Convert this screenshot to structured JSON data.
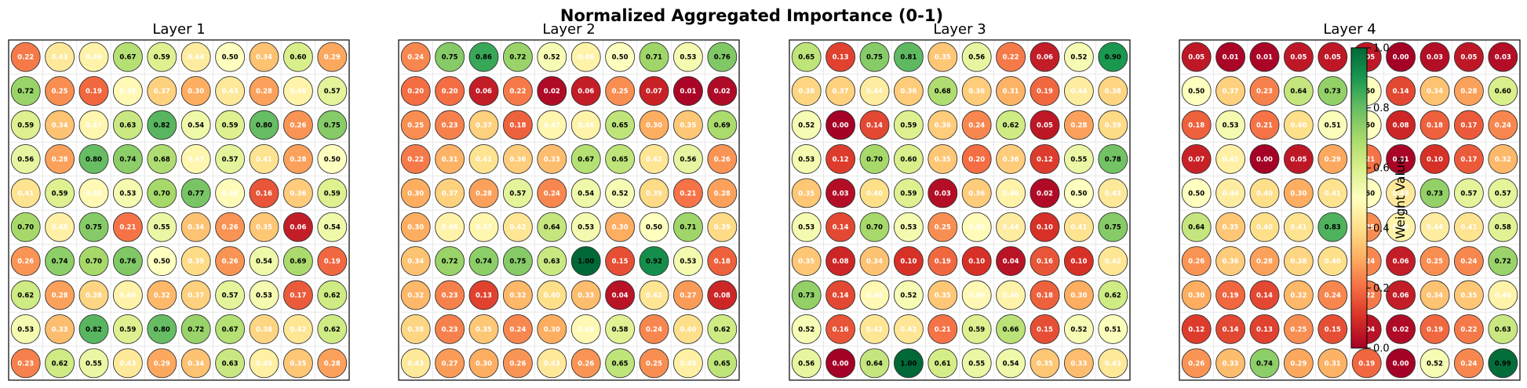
{
  "chart_data": {
    "type": "heatmap",
    "title": "Normalized Aggregated Importance (0-1)",
    "value_range": [
      0,
      1
    ],
    "colormap": "RdYlGn",
    "panels": [
      {
        "title": "Layer 1",
        "values": [
          [
            0.22,
            0.43,
            0.46,
            0.67,
            0.59,
            0.44,
            0.5,
            0.34,
            0.6,
            0.29
          ],
          [
            0.72,
            0.25,
            0.19,
            0.48,
            0.37,
            0.3,
            0.43,
            0.28,
            0.46,
            0.57
          ],
          [
            0.59,
            0.34,
            0.47,
            0.63,
            0.82,
            0.54,
            0.59,
            0.8,
            0.26,
            0.75
          ],
          [
            0.56,
            0.28,
            0.8,
            0.74,
            0.68,
            0.47,
            0.57,
            0.41,
            0.28,
            0.5
          ],
          [
            0.41,
            0.59,
            0.48,
            0.53,
            0.7,
            0.77,
            0.49,
            0.16,
            0.36,
            0.59
          ],
          [
            0.7,
            0.45,
            0.75,
            0.21,
            0.55,
            0.34,
            0.26,
            0.35,
            0.06,
            0.54
          ],
          [
            0.26,
            0.74,
            0.7,
            0.76,
            0.5,
            0.39,
            0.26,
            0.54,
            0.69,
            0.19
          ],
          [
            0.62,
            0.28,
            0.38,
            0.46,
            0.32,
            0.37,
            0.57,
            0.53,
            0.17,
            0.62
          ],
          [
            0.53,
            0.33,
            0.82,
            0.59,
            0.8,
            0.72,
            0.67,
            0.38,
            0.42,
            0.62
          ],
          [
            0.23,
            0.62,
            0.55,
            0.43,
            0.29,
            0.34,
            0.63,
            0.45,
            0.35,
            0.28
          ]
        ]
      },
      {
        "title": "Layer 2",
        "values": [
          [
            0.24,
            0.75,
            0.86,
            0.72,
            0.52,
            0.46,
            0.5,
            0.71,
            0.53,
            0.76
          ],
          [
            0.2,
            0.2,
            0.06,
            0.22,
            0.02,
            0.06,
            0.25,
            0.07,
            0.01,
            0.02
          ],
          [
            0.25,
            0.23,
            0.37,
            0.18,
            0.47,
            0.46,
            0.65,
            0.3,
            0.35,
            0.69
          ],
          [
            0.22,
            0.31,
            0.41,
            0.36,
            0.33,
            0.67,
            0.65,
            0.42,
            0.56,
            0.26
          ],
          [
            0.3,
            0.37,
            0.28,
            0.57,
            0.24,
            0.54,
            0.52,
            0.39,
            0.21,
            0.28
          ],
          [
            0.3,
            0.46,
            0.47,
            0.42,
            0.64,
            0.53,
            0.3,
            0.5,
            0.71,
            0.39
          ],
          [
            0.34,
            0.72,
            0.74,
            0.75,
            0.63,
            1.0,
            0.15,
            0.92,
            0.53,
            0.18
          ],
          [
            0.32,
            0.23,
            0.13,
            0.32,
            0.4,
            0.33,
            0.04,
            0.42,
            0.27,
            0.08
          ],
          [
            0.38,
            0.23,
            0.35,
            0.24,
            0.3,
            0.48,
            0.58,
            0.24,
            0.4,
            0.62
          ],
          [
            0.43,
            0.27,
            0.3,
            0.26,
            0.43,
            0.26,
            0.65,
            0.25,
            0.45,
            0.65
          ]
        ]
      },
      {
        "title": "Layer 3",
        "values": [
          [
            0.65,
            0.13,
            0.75,
            0.81,
            0.35,
            0.56,
            0.22,
            0.06,
            0.52,
            0.9
          ],
          [
            0.38,
            0.37,
            0.44,
            0.36,
            0.68,
            0.36,
            0.31,
            0.19,
            0.44,
            0.38
          ],
          [
            0.52,
            0.0,
            0.14,
            0.59,
            0.36,
            0.24,
            0.62,
            0.05,
            0.28,
            0.39
          ],
          [
            0.53,
            0.12,
            0.7,
            0.6,
            0.35,
            0.2,
            0.36,
            0.12,
            0.55,
            0.78
          ],
          [
            0.35,
            0.03,
            0.4,
            0.59,
            0.03,
            0.36,
            0.46,
            0.02,
            0.5,
            0.43
          ],
          [
            0.53,
            0.14,
            0.7,
            0.53,
            0.25,
            0.49,
            0.44,
            0.1,
            0.41,
            0.75
          ],
          [
            0.35,
            0.08,
            0.34,
            0.1,
            0.19,
            0.1,
            0.04,
            0.16,
            0.1,
            0.42
          ],
          [
            0.73,
            0.14,
            0.48,
            0.52,
            0.35,
            0.48,
            0.46,
            0.18,
            0.3,
            0.62
          ],
          [
            0.52,
            0.16,
            0.42,
            0.42,
            0.21,
            0.59,
            0.66,
            0.15,
            0.52,
            0.51
          ],
          [
            0.56,
            0.0,
            0.64,
            1.0,
            0.61,
            0.55,
            0.54,
            0.35,
            0.33,
            0.43
          ]
        ]
      },
      {
        "title": "Layer 4",
        "values": [
          [
            0.05,
            0.01,
            0.01,
            0.05,
            0.05,
            0.05,
            0.0,
            0.03,
            0.05,
            0.03
          ],
          [
            0.5,
            0.37,
            0.23,
            0.64,
            0.73,
            0.5,
            0.14,
            0.34,
            0.28,
            0.6
          ],
          [
            0.18,
            0.53,
            0.21,
            0.4,
            0.51,
            0.5,
            0.08,
            0.18,
            0.17,
            0.24
          ],
          [
            0.07,
            0.45,
            0.0,
            0.05,
            0.29,
            0.21,
            0.01,
            0.1,
            0.17,
            0.32
          ],
          [
            0.5,
            0.44,
            0.4,
            0.3,
            0.41,
            0.5,
            0.43,
            0.73,
            0.57,
            0.57
          ],
          [
            0.64,
            0.35,
            0.4,
            0.41,
            0.83,
            0.25,
            0.46,
            0.44,
            0.41,
            0.58
          ],
          [
            0.26,
            0.36,
            0.28,
            0.38,
            0.4,
            0.24,
            0.06,
            0.25,
            0.24,
            0.72
          ],
          [
            0.3,
            0.19,
            0.14,
            0.32,
            0.24,
            0.22,
            0.06,
            0.34,
            0.35,
            0.46
          ],
          [
            0.12,
            0.14,
            0.13,
            0.25,
            0.15,
            0.04,
            0.02,
            0.19,
            0.22,
            0.63
          ],
          [
            0.26,
            0.33,
            0.74,
            0.29,
            0.31,
            0.19,
            0.0,
            0.52,
            0.24,
            0.99
          ]
        ]
      }
    ],
    "colorbar": {
      "label": "Weight Value",
      "ticks": [
        "0.0",
        "0.2",
        "0.4",
        "0.6",
        "0.8",
        "1.0"
      ]
    }
  }
}
